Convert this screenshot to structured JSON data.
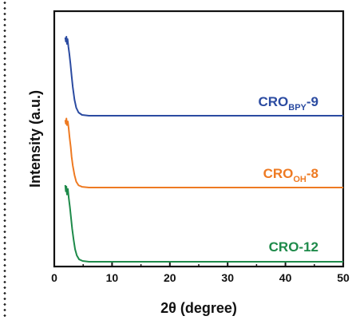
{
  "chart_data": {
    "type": "line",
    "title": "",
    "xlabel": "2θ (degree)",
    "ylabel": "Intensity (a.u.)",
    "xlim": [
      0,
      50
    ],
    "xticks": [
      0,
      10,
      20,
      30,
      40,
      50
    ],
    "yticks_shown": false,
    "grid": false,
    "series": [
      {
        "name": "CROBPY-9",
        "label_main": "CRO",
        "label_sub": "BPY",
        "label_suffix": "-9",
        "color": "#2b4ba1",
        "offset": 2.0,
        "points": [
          [
            1.9,
            0.98
          ],
          [
            2.0,
            0.93
          ],
          [
            2.1,
            0.99
          ],
          [
            2.2,
            0.9
          ],
          [
            2.3,
            0.96
          ],
          [
            2.45,
            0.86
          ],
          [
            2.6,
            0.78
          ],
          [
            2.8,
            0.65
          ],
          [
            3.0,
            0.5
          ],
          [
            3.2,
            0.36
          ],
          [
            3.5,
            0.2
          ],
          [
            3.8,
            0.1
          ],
          [
            4.2,
            0.04
          ],
          [
            4.8,
            0.01
          ],
          [
            6,
            0
          ],
          [
            10,
            0
          ],
          [
            20,
            0
          ],
          [
            30,
            0
          ],
          [
            40,
            0
          ],
          [
            50,
            0
          ]
        ]
      },
      {
        "name": "CROOH-8",
        "label_main": "CRO",
        "label_sub": "OH",
        "label_suffix": "-8",
        "color": "#ee7a22",
        "offset": 1.0,
        "points": [
          [
            1.9,
            0.92
          ],
          [
            2.0,
            0.87
          ],
          [
            2.1,
            0.94
          ],
          [
            2.2,
            0.85
          ],
          [
            2.35,
            0.9
          ],
          [
            2.5,
            0.8
          ],
          [
            2.65,
            0.68
          ],
          [
            2.85,
            0.55
          ],
          [
            3.0,
            0.42
          ],
          [
            3.2,
            0.3
          ],
          [
            3.5,
            0.17
          ],
          [
            3.8,
            0.08
          ],
          [
            4.2,
            0.03
          ],
          [
            4.8,
            0.01
          ],
          [
            6,
            0
          ],
          [
            10,
            0
          ],
          [
            20,
            0
          ],
          [
            30,
            0
          ],
          [
            40,
            0
          ],
          [
            50,
            0
          ]
        ]
      },
      {
        "name": "CRO-12",
        "label_main": "CRO-12",
        "label_sub": "",
        "label_suffix": "",
        "color": "#1e8a4a",
        "offset": 0.0,
        "points": [
          [
            1.9,
            0.98
          ],
          [
            2.0,
            0.9
          ],
          [
            2.1,
            0.96
          ],
          [
            2.2,
            0.86
          ],
          [
            2.35,
            0.93
          ],
          [
            2.5,
            0.82
          ],
          [
            2.7,
            0.7
          ],
          [
            2.9,
            0.56
          ],
          [
            3.1,
            0.42
          ],
          [
            3.35,
            0.28
          ],
          [
            3.6,
            0.16
          ],
          [
            3.9,
            0.08
          ],
          [
            4.3,
            0.03
          ],
          [
            4.9,
            0.01
          ],
          [
            6,
            0
          ],
          [
            10,
            0
          ],
          [
            20,
            0
          ],
          [
            30,
            0
          ],
          [
            40,
            0
          ],
          [
            50,
            0
          ]
        ]
      }
    ]
  }
}
